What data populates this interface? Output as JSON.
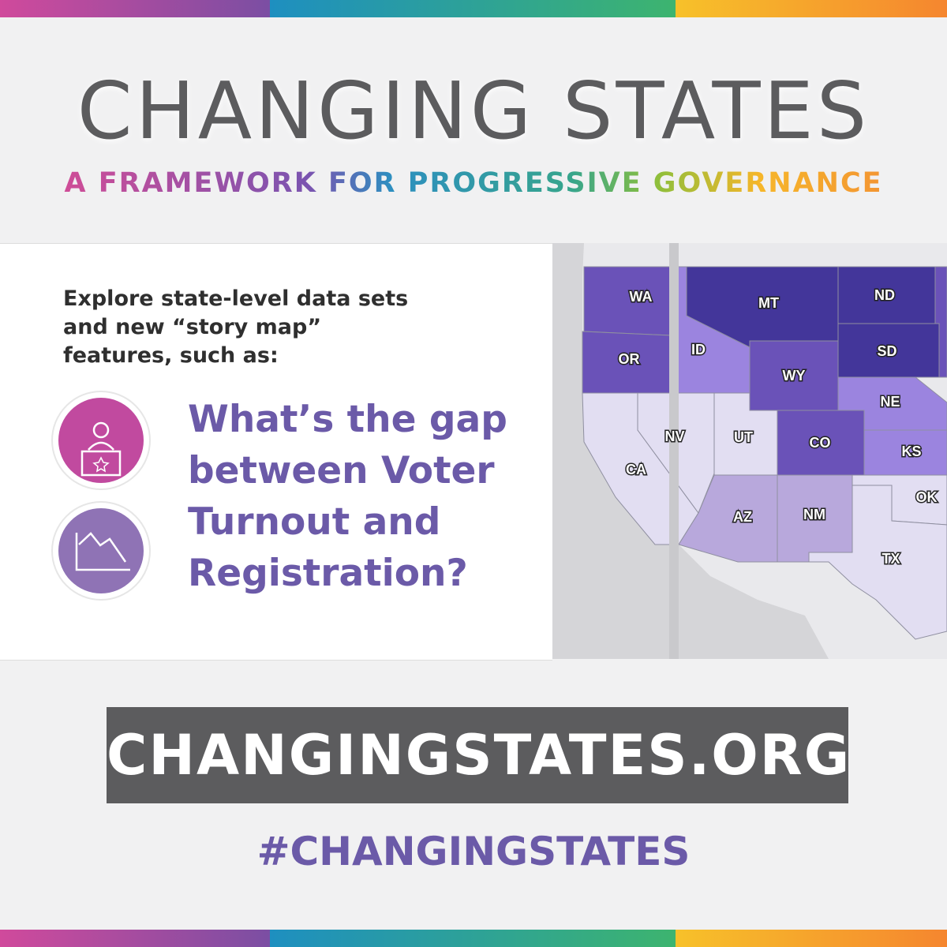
{
  "header": {
    "title": "CHANGING STATES",
    "subtitle": "A FRAMEWORK FOR PROGRESSIVE GOVERNANCE"
  },
  "panel": {
    "intro": "Explore state-level data sets and new “story map” features, such as:",
    "question": "What’s the gap between Voter Turnout and Registration?"
  },
  "map": {
    "states": [
      "WA",
      "OR",
      "CA",
      "ID",
      "NV",
      "UT",
      "MT",
      "WY",
      "CO",
      "AZ",
      "NM",
      "ND",
      "SD",
      "NE",
      "KS",
      "OK",
      "TX"
    ]
  },
  "footer": {
    "url": "CHANGINGSTATES.ORG",
    "hashtag": "#CHANGINGSTATES"
  }
}
